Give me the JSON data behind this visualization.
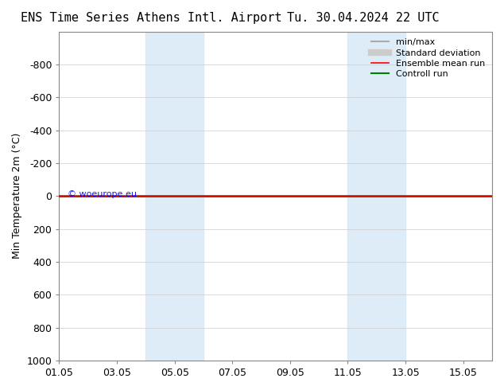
{
  "title_left": "ENS Time Series Athens Intl. Airport",
  "title_right": "Tu. 30.04.2024 22 UTC",
  "ylabel": "Min Temperature 2m (°C)",
  "ylim_top": -1000,
  "ylim_bottom": 1000,
  "yticks": [
    -800,
    -600,
    -400,
    -200,
    0,
    200,
    400,
    600,
    800,
    1000
  ],
  "xlim_left": 0,
  "xlim_right": 15,
  "xtick_positions": [
    0,
    2,
    4,
    6,
    8,
    10,
    12,
    14
  ],
  "xtick_labels": [
    "01.05",
    "03.05",
    "05.05",
    "07.05",
    "09.05",
    "11.05",
    "13.05",
    "15.05"
  ],
  "shade_bands": [
    {
      "x_start": 3.0,
      "x_end": 5.0,
      "color": "#d6e8f7",
      "alpha": 0.8
    },
    {
      "x_start": 10.0,
      "x_end": 12.0,
      "color": "#d6e8f7",
      "alpha": 0.8
    }
  ],
  "green_line_y": 5,
  "red_line_y": 0,
  "watermark": "© woeurope.eu",
  "legend_items": [
    {
      "label": "min/max",
      "color": "#aaaaaa",
      "lw": 1.5
    },
    {
      "label": "Standard deviation",
      "color": "#cccccc",
      "lw": 6
    },
    {
      "label": "Ensemble mean run",
      "color": "red",
      "lw": 1.2
    },
    {
      "label": "Controll run",
      "color": "green",
      "lw": 1.5
    }
  ],
  "bg_color": "white",
  "plot_bg_color": "white",
  "grid_color": "#cccccc",
  "title_fontsize": 11,
  "tick_fontsize": 9,
  "ylabel_fontsize": 9
}
